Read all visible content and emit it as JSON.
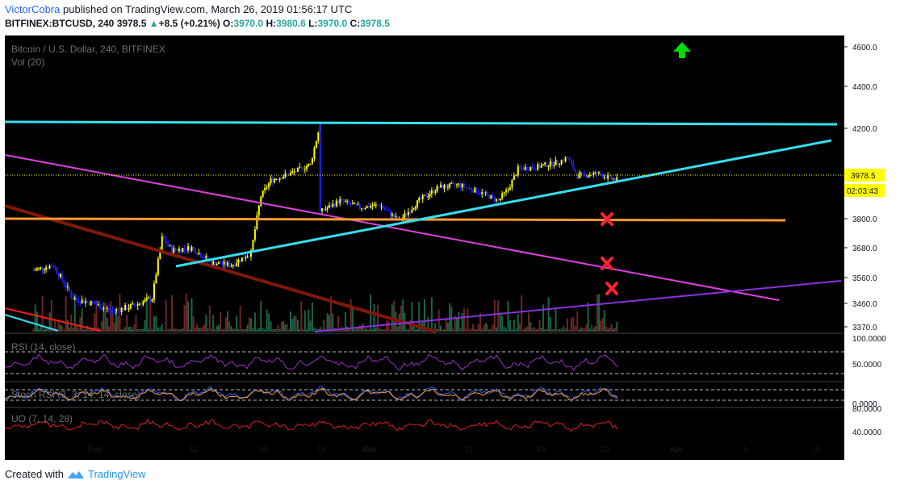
{
  "header": {
    "author": "VictorCobra",
    "published": "published on TradingView.com, March 26, 2019 01:56:17 UTC",
    "symbol": "BITFINEX:BTCUSD, 240",
    "last": "3978.5",
    "change": "+8.5 (+0.21%)",
    "open_label": "O:",
    "open": "3970.0",
    "high_label": "H:",
    "high": "3980.6",
    "low_label": "L:",
    "low": "3970.0",
    "close_label": "C:",
    "close": "3978.5"
  },
  "footer": {
    "created_with": "Created with",
    "brand": "TradingView"
  },
  "colors": {
    "background": "#000000",
    "bull": "#ffff00",
    "bear": "#2020ff",
    "cyan": "#33e0f0",
    "magenta": "#e040e0",
    "orange": "#ff9a30",
    "maroon": "#801808",
    "red": "#ff1a1a",
    "purple": "#8a30e0",
    "green_arrow": "#00dd00",
    "cross": "#ff2030"
  },
  "chart_data": {
    "type": "candlestick",
    "title": "Bitcoin / U.S. Dollar, 240, BITFINEX",
    "volume_label": "Vol (20)",
    "y_ticks": [
      4600.0,
      4400.0,
      4200.0,
      3800.0,
      3680.0,
      3560.0,
      3460.0,
      3370.0
    ],
    "y_tick_labels": [
      "4600.0",
      "4400.0",
      "4200.0",
      "3800.0",
      "3680.0",
      "3560.0",
      "3460.0",
      "3370.0"
    ],
    "x_tick_labels": [
      "Feb",
      "11",
      "18",
      "25",
      "Mar",
      "11",
      "18",
      "25",
      "Apr",
      "8",
      "15"
    ],
    "last_price": "3978.5",
    "countdown": "02:03:43",
    "price_path": [
      [
        "Jan 26",
        3590
      ],
      [
        "Jan 28",
        3610
      ],
      [
        "Jan 30",
        3480
      ],
      [
        "Feb 1",
        3460
      ],
      [
        "Feb 3",
        3430
      ],
      [
        "Feb 5",
        3450
      ],
      [
        "Feb 7",
        3480
      ],
      [
        "Feb 8",
        3720
      ],
      [
        "Feb 9",
        3670
      ],
      [
        "Feb 11",
        3680
      ],
      [
        "Feb 13",
        3620
      ],
      [
        "Feb 15",
        3610
      ],
      [
        "Feb 17",
        3660
      ],
      [
        "Feb 18",
        3900
      ],
      [
        "Feb 19",
        3970
      ],
      [
        "Feb 21",
        4000
      ],
      [
        "Feb 23",
        4040
      ],
      [
        "Feb 24",
        4220
      ],
      [
        "Feb 24",
        3830
      ],
      [
        "Feb 26",
        3880
      ],
      [
        "Feb 28",
        3850
      ],
      [
        "Mar 2",
        3860
      ],
      [
        "Mar 4",
        3790
      ],
      [
        "Mar 6",
        3880
      ],
      [
        "Mar 8",
        3940
      ],
      [
        "Mar 10",
        3950
      ],
      [
        "Mar 12",
        3920
      ],
      [
        "Mar 14",
        3880
      ],
      [
        "Mar 15",
        3930
      ],
      [
        "Mar 16",
        4020
      ],
      [
        "Mar 18",
        4030
      ],
      [
        "Mar 20",
        4050
      ],
      [
        "Mar 21",
        4070
      ],
      [
        "Mar 22",
        3990
      ],
      [
        "Mar 24",
        4000
      ],
      [
        "Mar 26",
        3970
      ]
    ],
    "indicators": [
      {
        "name": "RSI (14, close)",
        "ticks": [
          "100.0000",
          "50.0000"
        ]
      },
      {
        "name": "Stoch RSI (3, 3, 14, 14, close)",
        "ticks": [
          "0.0000"
        ]
      },
      {
        "name": "UO (7, 14, 28)",
        "ticks": [
          "80.0000",
          "40.0000"
        ]
      }
    ]
  }
}
